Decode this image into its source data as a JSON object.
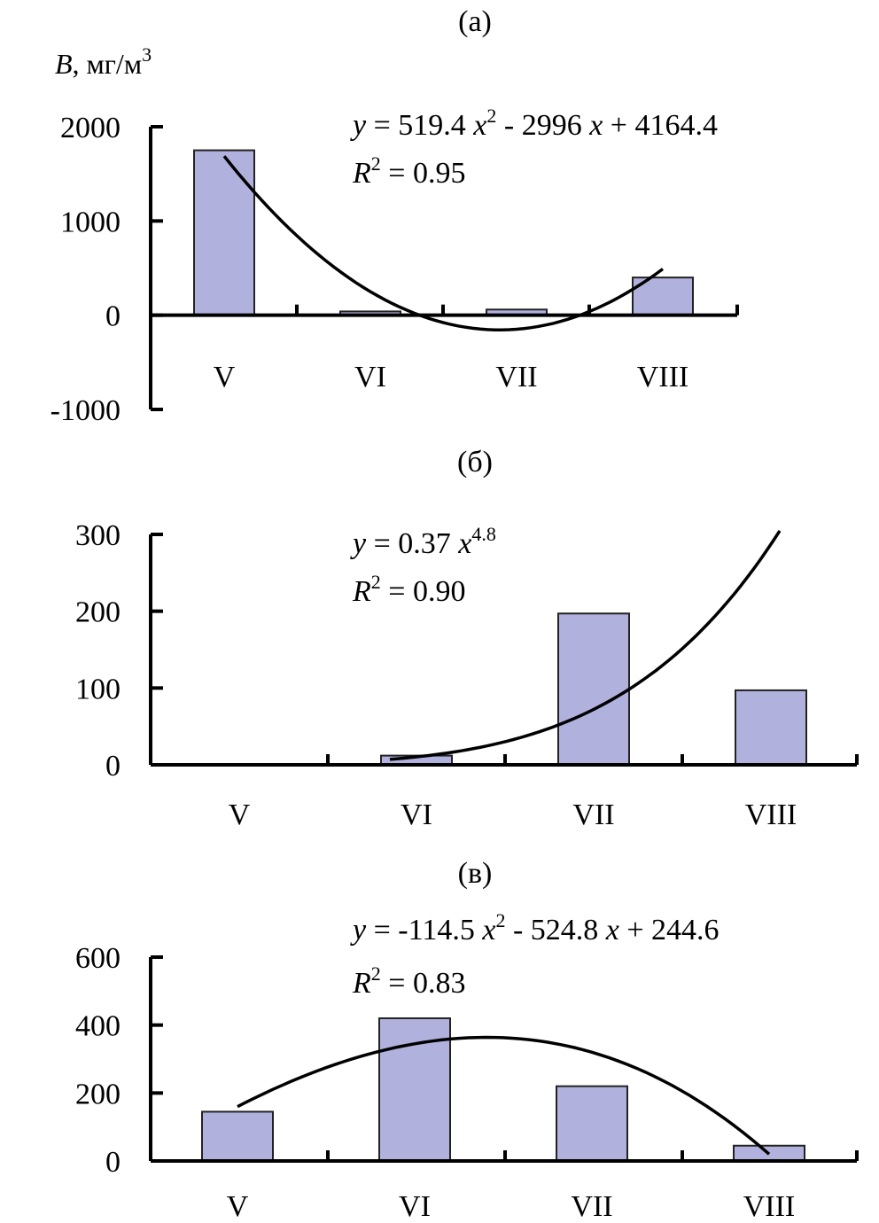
{
  "chart_data": [
    {
      "type": "bar",
      "panel_label": "(а)",
      "ylabel_var": "B",
      "ylabel_unit": ", мг/м",
      "ylabel_unit_sup": "3",
      "categories": [
        "V",
        "VI",
        "VII",
        "VIII"
      ],
      "values": [
        1750,
        40,
        60,
        400
      ],
      "ylim": [
        -1000,
        2000
      ],
      "yticks": [
        2000,
        1000,
        0,
        -1000
      ],
      "trend": {
        "type": "poly2",
        "coefficients": [
          519.4,
          -2996,
          4164.4
        ]
      },
      "annotations": {
        "eq_y": "y",
        "eq_a": " = 519.4 ",
        "eq_x1": "x",
        "eq_sup": "2",
        "eq_b": " - 2996 ",
        "eq_x2": "x",
        "eq_c": " + 4164.4",
        "r2_r": "R",
        "r2_sup": "2",
        "r2_val": " = 0.95"
      }
    },
    {
      "type": "bar",
      "panel_label": "(б)",
      "categories": [
        "V",
        "VI",
        "VII",
        "VIII"
      ],
      "values": [
        0,
        12,
        197,
        97
      ],
      "ylim": [
        0,
        300
      ],
      "yticks": [
        300,
        200,
        100,
        0
      ],
      "trend": {
        "type": "power",
        "coefficient": 0.37,
        "exponent": 4.8
      },
      "annotations": {
        "eq_y": "y",
        "eq_a": " = 0.37 ",
        "eq_x1": "x",
        "eq_sup": "4.8",
        "r2_r": "R",
        "r2_sup": "2",
        "r2_val": " = 0.90"
      }
    },
    {
      "type": "bar",
      "panel_label": "(в)",
      "categories": [
        "V",
        "VI",
        "VII",
        "VIII"
      ],
      "values": [
        145,
        420,
        220,
        45
      ],
      "ylim": [
        0,
        600
      ],
      "yticks": [
        600,
        400,
        200,
        0
      ],
      "trend": {
        "type": "poly2",
        "coefficients": [
          -114.5,
          -524.8,
          244.6
        ]
      },
      "annotations": {
        "eq_y": "y",
        "eq_a": " = -114.5 ",
        "eq_x1": "x",
        "eq_sup": "2",
        "eq_b": " - 524.8 ",
        "eq_x2": "x",
        "eq_c": " + 244.6",
        "r2_r": "R",
        "r2_sup": "2",
        "r2_val": " = 0.83"
      }
    }
  ]
}
